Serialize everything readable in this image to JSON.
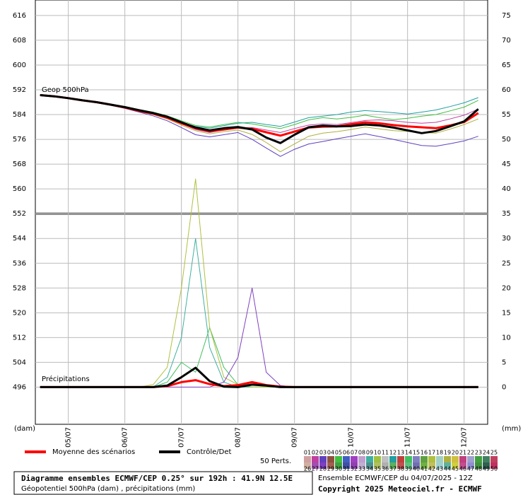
{
  "chart_data": {
    "type": "line",
    "geop_label": "Geop 500hPa",
    "precip_label": "Précipitations",
    "y_unit": "(dam)",
    "y2_unit": "(mm)",
    "x": [
      0,
      6,
      12,
      18,
      24,
      30,
      36,
      42,
      48,
      54,
      60,
      66,
      72,
      78,
      84,
      90,
      96,
      102,
      108,
      114,
      120,
      126,
      132,
      138,
      144,
      150,
      156,
      162,
      168,
      174,
      180,
      186
    ],
    "xlim": [
      -2,
      190
    ],
    "xticks": [
      {
        "value": 12,
        "label": "05/07"
      },
      {
        "value": 36,
        "label": "06/07"
      },
      {
        "value": 60,
        "label": "07/07"
      },
      {
        "value": 84,
        "label": "08/07"
      },
      {
        "value": 108,
        "label": "09/07"
      },
      {
        "value": 132,
        "label": "10/07"
      },
      {
        "value": 156,
        "label": "11/07"
      },
      {
        "value": 180,
        "label": "12/07"
      }
    ],
    "ylim": [
      484,
      621
    ],
    "yticks": [
      496,
      504,
      512,
      520,
      528,
      536,
      544,
      552,
      560,
      568,
      576,
      584,
      592,
      600,
      608,
      616
    ],
    "y2lim": [
      -7.5,
      78.125
    ],
    "y2ticks": [
      0,
      5,
      10,
      15,
      20,
      25,
      30,
      35,
      40,
      45,
      50,
      55,
      60,
      65,
      70,
      75
    ],
    "separator": 552,
    "series": [
      {
        "name": "Moyenne des scénarios",
        "color": "#ff0000",
        "values": [
          590.3,
          589.9,
          589.3,
          588.6,
          588.0,
          587.2,
          586.3,
          585.2,
          584.3,
          583.0,
          581.2,
          579.6,
          578.6,
          579.2,
          579.8,
          579.4,
          578.3,
          577.2,
          578.5,
          579.8,
          580.1,
          580.2,
          580.9,
          581.5,
          581.2,
          580.6,
          580.2,
          579.9,
          579.6,
          580.5,
          581.6,
          584.5
        ],
        "precip": [
          0,
          0,
          0,
          0,
          0,
          0,
          0,
          0,
          0,
          0.2,
          1.0,
          1.4,
          0.6,
          0.2,
          0.4,
          1.0,
          0.4,
          0.1,
          0,
          0,
          0,
          0,
          0,
          0,
          0,
          0,
          0,
          0,
          0,
          0,
          0,
          0
        ]
      },
      {
        "name": "Contrôle/Det",
        "color": "#000000",
        "values": [
          590.3,
          589.9,
          589.3,
          588.6,
          588.0,
          587.2,
          586.4,
          585.4,
          584.5,
          583.3,
          581.5,
          579.8,
          578.9,
          579.6,
          580.0,
          579.2,
          576.6,
          574.8,
          577.5,
          579.9,
          580.4,
          580.2,
          580.3,
          580.8,
          580.5,
          579.8,
          578.9,
          578.0,
          578.7,
          580.2,
          581.8,
          585.8
        ],
        "precip": [
          0,
          0,
          0,
          0,
          0,
          0,
          0,
          0,
          0,
          0.3,
          2.0,
          3.9,
          1.2,
          0.1,
          0,
          0.5,
          0.3,
          0,
          0,
          0,
          0,
          0,
          0,
          0,
          0,
          0,
          0,
          0,
          0,
          0,
          0,
          0
        ]
      }
    ],
    "perturbations_label": "50 Perts.",
    "perturbations": [
      {
        "name": "01",
        "color": "#d0a0a0"
      },
      {
        "name": "02",
        "color": "#c040a0",
        "geop": [
          590.3,
          589.9,
          589.3,
          588.6,
          588.0,
          587.2,
          586.3,
          585.2,
          584.2,
          582.9,
          581.0,
          579.2,
          578.2,
          579.0,
          579.6,
          579.8,
          579.0,
          578.2,
          579.5,
          580.6,
          581.0,
          580.8,
          581.4,
          582.1,
          582.3,
          582.0,
          581.5,
          581.2,
          581.5,
          582.6,
          583.8,
          585.8
        ]
      },
      {
        "name": "03",
        "color": "#6040c0",
        "geop": [
          590.3,
          589.8,
          589.2,
          588.5,
          587.9,
          587.0,
          586.0,
          584.8,
          583.6,
          582.0,
          579.8,
          577.5,
          576.8,
          577.5,
          578.2,
          576.0,
          573.2,
          570.5,
          572.8,
          574.5,
          575.3,
          576.2,
          577.0,
          577.8,
          576.9,
          576.0,
          575.0,
          574.0,
          573.8,
          574.6,
          575.5,
          577.0
        ]
      },
      {
        "name": "04",
        "color": "#905040"
      },
      {
        "name": "05",
        "color": "#40c040",
        "geop": [
          590.3,
          589.9,
          589.3,
          588.6,
          588.0,
          587.2,
          586.5,
          585.6,
          584.8,
          583.6,
          582.0,
          580.5,
          580.0,
          580.8,
          581.5,
          581.0,
          580.2,
          579.5,
          580.8,
          582.3,
          583.0,
          582.6,
          583.1,
          583.8,
          583.0,
          582.4,
          582.8,
          583.5,
          584.0,
          585.2,
          586.4,
          588.6
        ]
      },
      {
        "name": "06",
        "color": "#4060c0"
      },
      {
        "name": "07",
        "color": "#a040c0"
      },
      {
        "name": "08",
        "color": "#c0a0d0"
      },
      {
        "name": "09",
        "color": "#40b0a0",
        "precip": [
          0,
          0,
          0,
          0,
          0,
          0,
          0,
          0,
          0,
          2,
          10,
          30,
          8,
          1,
          0,
          0,
          0,
          0,
          0,
          0,
          0,
          0,
          0,
          0,
          0,
          0,
          0,
          0,
          0,
          0,
          0,
          0
        ]
      },
      {
        "name": "10",
        "color": "#a0c040"
      },
      {
        "name": "11",
        "color": "#c0c0c0"
      },
      {
        "name": "12",
        "color": "#20a0a0",
        "geop": [
          590.3,
          589.9,
          589.4,
          588.7,
          588.1,
          587.3,
          586.4,
          585.3,
          584.5,
          583.3,
          581.5,
          580.2,
          579.6,
          580.4,
          581.2,
          581.5,
          580.8,
          580.2,
          581.6,
          583.0,
          583.5,
          584.0,
          584.8,
          585.3,
          585.0,
          584.6,
          584.2,
          584.8,
          585.5,
          586.6,
          587.8,
          589.5
        ]
      },
      {
        "name": "13",
        "color": "#c04040"
      },
      {
        "name": "14",
        "color": "#40c060",
        "precip": [
          0,
          0,
          0,
          0,
          0,
          0,
          0,
          0,
          0,
          1,
          5,
          3,
          12,
          4,
          0.5,
          0,
          0,
          0,
          0,
          0,
          0,
          0,
          0,
          0,
          0,
          0,
          0,
          0,
          0,
          0,
          0,
          0
        ]
      },
      {
        "name": "15",
        "color": "#8080c0"
      },
      {
        "name": "16",
        "color": "#60a040"
      },
      {
        "name": "17",
        "color": "#b0c040",
        "precip": [
          0,
          0,
          0,
          0,
          0,
          0,
          0,
          0,
          0.5,
          4,
          20,
          42,
          12,
          2,
          0.5,
          0,
          0,
          0,
          0,
          0,
          0,
          0,
          0,
          0,
          0,
          0,
          0,
          0,
          0,
          0,
          0,
          0
        ]
      },
      {
        "name": "18",
        "color": "#a0d0c0"
      },
      {
        "name": "19",
        "color": "#b0b040",
        "geop": [
          590.3,
          589.9,
          589.3,
          588.6,
          588.0,
          587.2,
          586.2,
          585.0,
          584.0,
          582.6,
          580.6,
          578.8,
          577.8,
          578.5,
          579.0,
          577.6,
          575.0,
          572.0,
          574.5,
          577.0,
          578.0,
          578.5,
          579.2,
          580.0,
          579.4,
          578.8,
          578.6,
          578.2,
          578.0,
          579.3,
          580.8,
          582.6
        ]
      },
      {
        "name": "20",
        "color": "#d0c040"
      },
      {
        "name": "21",
        "color": "#c04080"
      },
      {
        "name": "22",
        "color": "#a0a0d0"
      },
      {
        "name": "23",
        "color": "#40a040"
      },
      {
        "name": "24",
        "color": "#408060"
      },
      {
        "name": "25",
        "color": "#c04060"
      },
      {
        "name": "26",
        "color": "#d0b0a0"
      },
      {
        "name": "27",
        "color": "#a050b0"
      },
      {
        "name": "28",
        "color": "#8040c0",
        "precip": [
          0,
          0,
          0,
          0,
          0,
          0,
          0,
          0,
          0,
          0,
          0,
          0,
          0,
          1,
          6,
          20,
          3,
          0.3,
          0,
          0,
          0,
          0,
          0,
          0,
          0,
          0,
          0,
          0,
          0,
          0,
          0,
          0
        ]
      },
      {
        "name": "29",
        "color": "#a06050"
      },
      {
        "name": "30",
        "color": "#40a040"
      },
      {
        "name": "31",
        "color": "#4050a0"
      },
      {
        "name": "32",
        "color": "#9040b0"
      },
      {
        "name": "33",
        "color": "#c0b0d0"
      },
      {
        "name": "34",
        "color": "#509090"
      },
      {
        "name": "35",
        "color": "#b0c060"
      },
      {
        "name": "36",
        "color": "#b0b0b0"
      },
      {
        "name": "37",
        "color": "#60b060"
      },
      {
        "name": "38",
        "color": "#c05050"
      },
      {
        "name": "39",
        "color": "#60c080"
      },
      {
        "name": "40",
        "color": "#7070b0"
      },
      {
        "name": "41",
        "color": "#70b040"
      },
      {
        "name": "42",
        "color": "#c0c060"
      },
      {
        "name": "43",
        "color": "#a0d0d0"
      },
      {
        "name": "44",
        "color": "#60b0a0"
      },
      {
        "name": "45",
        "color": "#d0d040"
      },
      {
        "name": "46",
        "color": "#c05090"
      },
      {
        "name": "47",
        "color": "#9090d0"
      },
      {
        "name": "48",
        "color": "#409040"
      },
      {
        "name": "49",
        "color": "#306050"
      },
      {
        "name": "50",
        "color": "#c03060"
      }
    ]
  },
  "footer": {
    "title": "Diagramme ensembles ECMWF/CEP 0.25° sur 192h : 41.9N 12.5E",
    "subtitle": "Géopotentiel 500hPa (dam) , précipitations (mm)",
    "run": "Ensemble ECMWF/CEP du 04/07/2025 - 12Z",
    "copyright": "Copyright 2025 Meteociel.fr - ECMWF"
  }
}
